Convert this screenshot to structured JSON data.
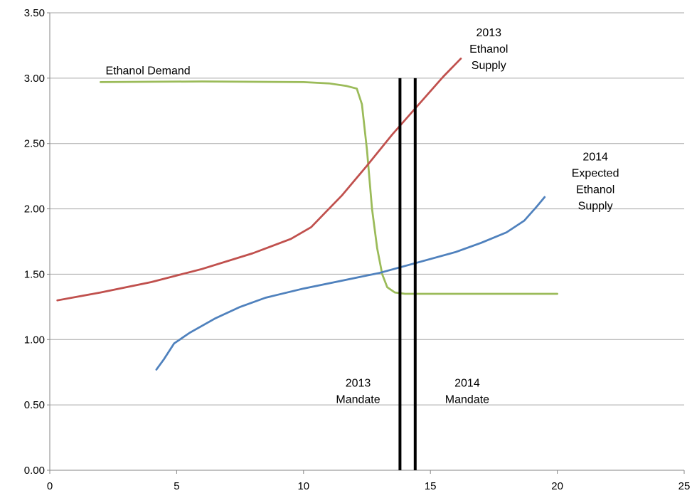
{
  "chart_data": {
    "type": "line",
    "xlim": [
      0,
      25
    ],
    "ylim": [
      0,
      3.5
    ],
    "grid": "horizontal",
    "x_ticks": [
      "0",
      "5",
      "10",
      "15",
      "20",
      "25"
    ],
    "y_ticks": [
      "0.00",
      "0.50",
      "1.00",
      "1.50",
      "2.00",
      "2.50",
      "3.00",
      "3.50"
    ],
    "series": [
      {
        "color": "#9bbb59",
        "points": [
          [
            2.0,
            2.97
          ],
          [
            6.0,
            2.975
          ],
          [
            10.0,
            2.97
          ],
          [
            11.0,
            2.96
          ],
          [
            11.7,
            2.94
          ],
          [
            12.1,
            2.92
          ],
          [
            12.3,
            2.8
          ],
          [
            12.5,
            2.45
          ],
          [
            12.7,
            2.0
          ],
          [
            12.9,
            1.7
          ],
          [
            13.1,
            1.5
          ],
          [
            13.3,
            1.4
          ],
          [
            13.6,
            1.36
          ],
          [
            14.0,
            1.35
          ],
          [
            16.0,
            1.35
          ],
          [
            20.0,
            1.35
          ]
        ]
      },
      {
        "color": "#c0504d",
        "points": [
          [
            0.3,
            1.3
          ],
          [
            2.0,
            1.36
          ],
          [
            4.0,
            1.44
          ],
          [
            6.0,
            1.54
          ],
          [
            8.0,
            1.66
          ],
          [
            9.5,
            1.77
          ],
          [
            10.3,
            1.86
          ],
          [
            10.9,
            1.98
          ],
          [
            11.5,
            2.1
          ],
          [
            12.5,
            2.33
          ],
          [
            13.5,
            2.57
          ],
          [
            14.5,
            2.79
          ],
          [
            15.5,
            3.01
          ],
          [
            16.2,
            3.15
          ]
        ]
      },
      {
        "color": "#4f81bd",
        "points": [
          [
            4.2,
            0.77
          ],
          [
            4.5,
            0.85
          ],
          [
            4.9,
            0.97
          ],
          [
            5.5,
            1.05
          ],
          [
            6.5,
            1.16
          ],
          [
            7.5,
            1.25
          ],
          [
            8.5,
            1.32
          ],
          [
            10.0,
            1.39
          ],
          [
            11.5,
            1.45
          ],
          [
            13.0,
            1.51
          ],
          [
            14.5,
            1.59
          ],
          [
            16.0,
            1.67
          ],
          [
            17.0,
            1.74
          ],
          [
            18.0,
            1.82
          ],
          [
            18.7,
            1.91
          ],
          [
            19.2,
            2.02
          ],
          [
            19.5,
            2.09
          ]
        ]
      },
      {
        "color": "#000000",
        "vertical": true,
        "points": [
          [
            13.8,
            0.0
          ],
          [
            13.8,
            3.0
          ]
        ]
      },
      {
        "color": "#000000",
        "vertical": true,
        "points": [
          [
            14.4,
            0.0
          ],
          [
            14.4,
            3.0
          ]
        ]
      }
    ],
    "annotations": [
      {
        "lines": [
          "Ethanol Demand"
        ],
        "x": 2.2,
        "y": 3.03,
        "anchor": "start"
      },
      {
        "lines": [
          "2013",
          "Ethanol",
          "Supply"
        ],
        "x": 17.3,
        "y": 3.32,
        "anchor": "middle"
      },
      {
        "lines": [
          "2014",
          "Expected",
          "Ethanol",
          "Supply"
        ],
        "x": 21.5,
        "y": 2.37,
        "anchor": "middle"
      },
      {
        "lines": [
          "2013",
          "Mandate"
        ],
        "x": 12.15,
        "y": 0.64,
        "anchor": "middle"
      },
      {
        "lines": [
          "2014",
          "Mandate"
        ],
        "x": 16.45,
        "y": 0.64,
        "anchor": "middle"
      }
    ]
  }
}
